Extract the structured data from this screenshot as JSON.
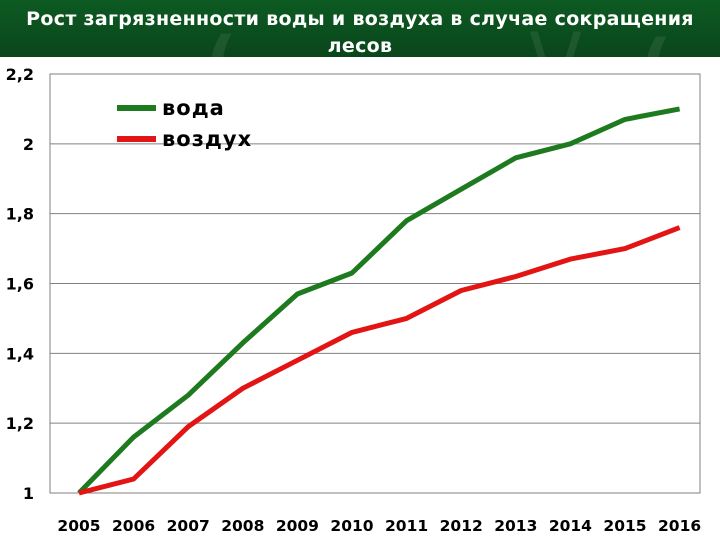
{
  "title": "Рост загрязненности воды и воздуха в случае сокращения лесов",
  "chart_data": {
    "type": "line",
    "title": "Рост загрязненности воды и воздуха в случае сокращения лесов",
    "categories": [
      "2005",
      "2006",
      "2007",
      "2008",
      "2009",
      "2010",
      "2011",
      "2012",
      "2013",
      "2014",
      "2015",
      "2016"
    ],
    "yticks": [
      "1",
      "1,2",
      "1,4",
      "1,6",
      "1,8",
      "2",
      "2,2"
    ],
    "ylim": [
      1,
      2.2
    ],
    "grid": "horizontal",
    "legend_position": "top-left",
    "series": [
      {
        "name": "вода",
        "color": "#1e7a1e",
        "values": [
          1.0,
          1.16,
          1.28,
          1.43,
          1.57,
          1.63,
          1.78,
          1.87,
          1.96,
          2.0,
          2.07,
          2.1
        ]
      },
      {
        "name": "воздух",
        "color": "#e21414",
        "values": [
          1.0,
          1.04,
          1.19,
          1.3,
          1.38,
          1.46,
          1.5,
          1.58,
          1.62,
          1.67,
          1.7,
          1.76
        ]
      }
    ]
  }
}
